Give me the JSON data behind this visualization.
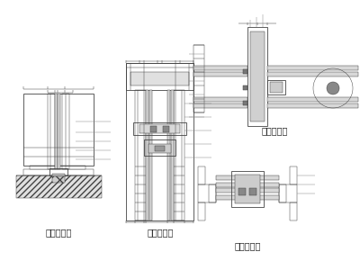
{
  "bg_color": "#ffffff",
  "lc": "#444444",
  "lc_light": "#888888",
  "lc_gray": "#aaaaaa",
  "labels": {
    "bl": "玻璃门下口",
    "bc": "玻璃门上口",
    "tr": "玻璃门横向",
    "br": "玻璃门扶手"
  },
  "label_fs": 7,
  "annot_fs": 3.5,
  "tc": "#222222"
}
